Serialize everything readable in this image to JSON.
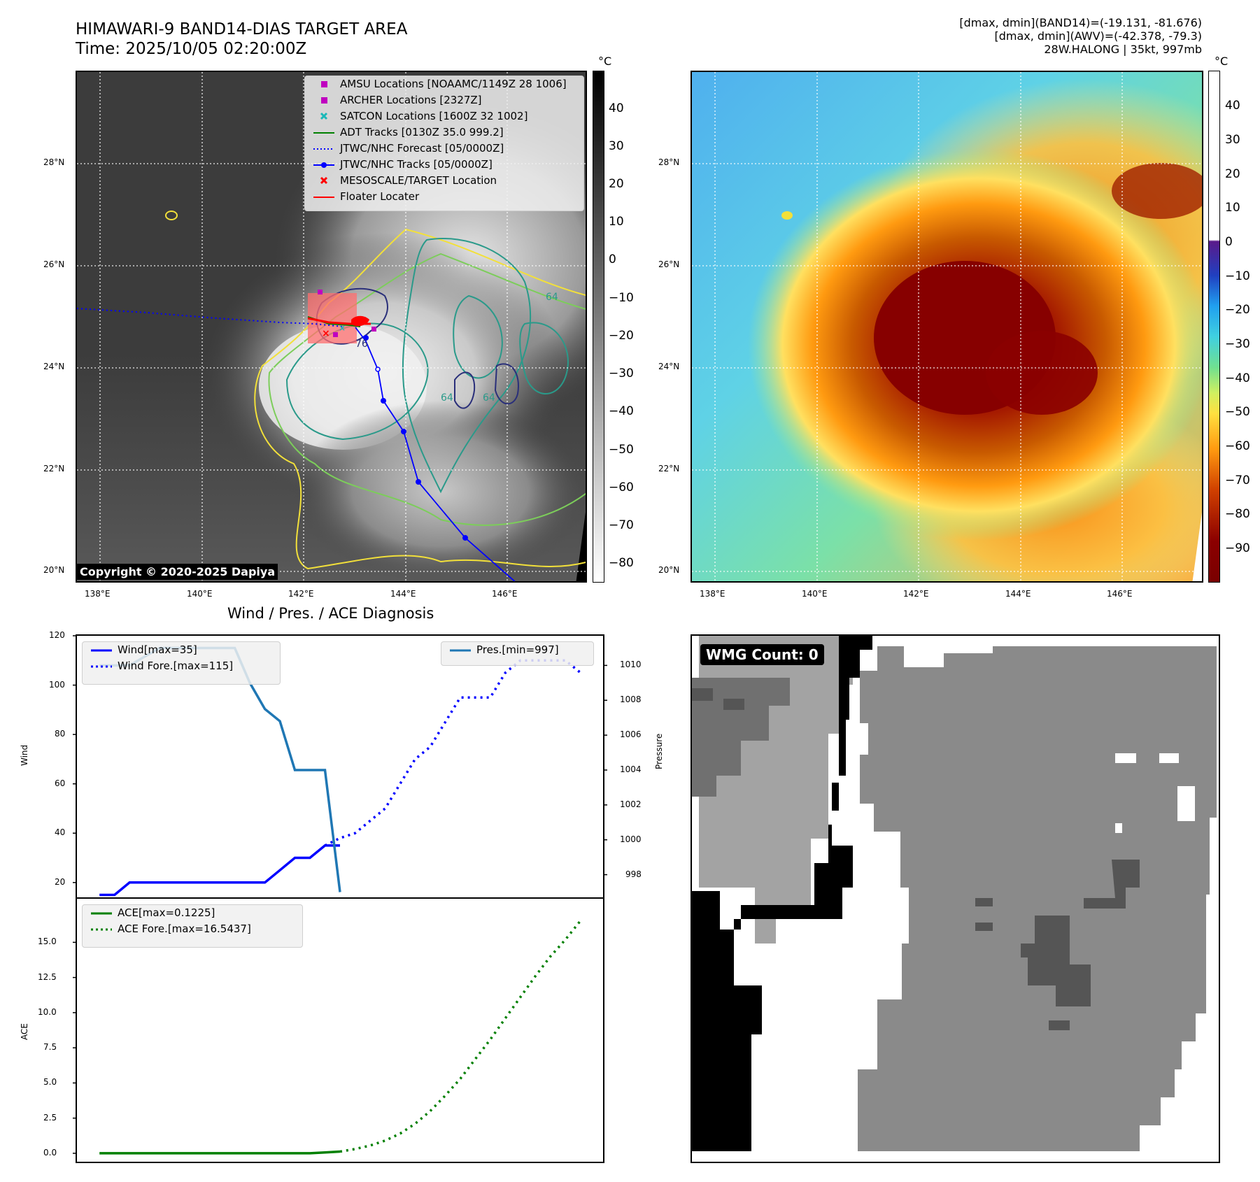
{
  "header": {
    "title_line1": "HIMAWARI-9 BAND14-DIAS TARGET AREA",
    "title_line2": "Time: 2025/10/05 02:20:00Z",
    "info_line1": "[dmax, dmin](BAND14)=(-19.131, -81.676)",
    "info_line2": "[dmax, dmin](AWV)=(-42.378, -79.3)",
    "info_line3": "28W.HALONG | 35kt, 997mb"
  },
  "map_axes": {
    "lat_labels": [
      "28°N",
      "26°N",
      "24°N",
      "22°N",
      "20°N"
    ],
    "lon_labels": [
      "138°E",
      "140°E",
      "142°E",
      "144°E",
      "146°E"
    ]
  },
  "left_map": {
    "copyright": "Copyright © 2020-2025 Dapiya",
    "legend": [
      {
        "label": "AMSU Locations [NOAAMC/1149Z 28 1006]",
        "symbol": "square-magenta",
        "color": "#c000c0"
      },
      {
        "label": "ARCHER Locations [2327Z]",
        "symbol": "square-magenta",
        "color": "#c000c0"
      },
      {
        "label": "SATCON Locations [1600Z 32 1002]",
        "symbol": "x-cyan",
        "color": "#1ab8b8"
      },
      {
        "label": "ADT Tracks [0130Z 35.0 999.2]",
        "symbol": "line-green",
        "color": "#008000"
      },
      {
        "label": "JTWC/NHC Forecast [05/0000Z]",
        "symbol": "dotted-blue",
        "color": "#0000ff"
      },
      {
        "label": "JTWC/NHC Tracks [05/0000Z]",
        "symbol": "line-dot-blue",
        "color": "#0000ff"
      },
      {
        "label": "MESOSCALE/TARGET Location",
        "symbol": "x-red",
        "color": "#ff0000"
      },
      {
        "label": "Floater Locater",
        "symbol": "line-red",
        "color": "#ff0000"
      }
    ],
    "colorbar_unit": "°C",
    "colorbar_ticks": [
      "40",
      "30",
      "20",
      "10",
      "0",
      "−10",
      "−20",
      "−30",
      "−40",
      "−50",
      "−60",
      "−70",
      "−80"
    ],
    "contour_labels": [
      "76",
      "64",
      "64",
      "64"
    ]
  },
  "right_map": {
    "colorbar_unit": "°C",
    "colorbar_ticks": [
      "40",
      "30",
      "20",
      "10",
      "0",
      "−10",
      "−20",
      "−30",
      "−40",
      "−50",
      "−60",
      "−70",
      "−80",
      "−90"
    ]
  },
  "chart_data": [
    {
      "type": "line",
      "title": "Wind / Pres. / ACE Diagnosis",
      "ylabel": "Wind",
      "ylim": [
        14,
        120
      ],
      "yticks": [
        "120",
        "100",
        "80",
        "60",
        "40",
        "20"
      ],
      "x": [
        0,
        1,
        2,
        3,
        4,
        5,
        6,
        7,
        8,
        9,
        10,
        11,
        12,
        13,
        14,
        15,
        16,
        17
      ],
      "series": [
        {
          "name": "Wind[max=35]",
          "style": "solid",
          "color": "#0000ff",
          "x": [
            0,
            1,
            2,
            3,
            4,
            5,
            6,
            7,
            8,
            9,
            10,
            11,
            12,
            13,
            14,
            15,
            16
          ],
          "values": [
            15,
            15,
            20,
            20,
            20,
            20,
            20,
            20,
            20,
            20,
            20,
            20,
            25,
            30,
            30,
            35,
            35
          ]
        },
        {
          "name": "Wind Fore.[max=115]",
          "style": "dotted",
          "color": "#0000ff",
          "x": [
            15,
            16,
            17,
            18,
            19,
            20,
            21,
            22,
            23,
            24,
            25,
            26,
            27,
            28,
            29,
            30,
            31,
            32
          ],
          "values": [
            35,
            38,
            40,
            45,
            50,
            60,
            70,
            75,
            85,
            95,
            95,
            95,
            105,
            110,
            110,
            110,
            110,
            105
          ]
        }
      ],
      "secondary": {
        "ylabel": "Pressure",
        "ylim": [
          996.7,
          1011.7
        ],
        "yticks": [
          "1010",
          "1008",
          "1006",
          "1004",
          "1002",
          "1000",
          "998"
        ],
        "series": [
          {
            "name": "Pres.[min=997]",
            "style": "solid",
            "color": "#1f77b4",
            "x": [
              0,
              1,
              2,
              3,
              4,
              5,
              6,
              7,
              8,
              9,
              10,
              11,
              12,
              13,
              14,
              15,
              16
            ],
            "values": [
              1010,
              1010,
              1010,
              1010.5,
              1011,
              1011,
              1011,
              1011,
              1011,
              1011,
              1009,
              1007.5,
              1006.8,
              1004,
              1004,
              1004,
              997
            ]
          }
        ]
      }
    },
    {
      "type": "line",
      "ylabel": "ACE",
      "ylim": [
        -0.6,
        18.1
      ],
      "yticks": [
        "15.0",
        "12.5",
        "10.0",
        "7.5",
        "5.0",
        "2.5",
        "0.0"
      ],
      "series": [
        {
          "name": "ACE[max=0.1225]",
          "style": "solid",
          "color": "#008000",
          "x": [
            0,
            1,
            2,
            3,
            4,
            5,
            6,
            7,
            8,
            9,
            10,
            11,
            12,
            13,
            14,
            15,
            16
          ],
          "values": [
            0,
            0,
            0,
            0,
            0,
            0,
            0,
            0,
            0,
            0,
            0,
            0,
            0,
            0,
            0,
            0.06,
            0.1225
          ]
        },
        {
          "name": "ACE Fore.[max=16.5437]",
          "style": "dotted",
          "color": "#008000",
          "x": [
            16,
            17,
            18,
            19,
            20,
            21,
            22,
            23,
            24,
            25,
            26,
            27,
            28,
            29,
            30,
            31,
            32
          ],
          "values": [
            0.12,
            0.3,
            0.55,
            0.9,
            1.4,
            2.1,
            3.0,
            4.1,
            5.3,
            6.7,
            8.1,
            9.6,
            11.1,
            12.6,
            14.0,
            15.2,
            16.5437
          ]
        }
      ]
    }
  ],
  "wmg_panel": {
    "label": "WMG Count: 0"
  }
}
